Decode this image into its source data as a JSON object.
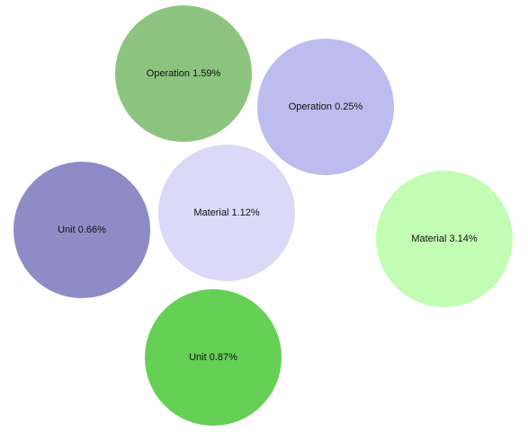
{
  "chart_data": {
    "type": "bubble",
    "title": "",
    "xlabel": "",
    "ylabel": "",
    "grid": false,
    "legend": "none",
    "bubbles": [
      {
        "name": "Operation",
        "value": 1.59,
        "label": "Operation 1.59%",
        "color": "#8cc47f"
      },
      {
        "name": "Operation",
        "value": 0.25,
        "label": "Operation 0.25%",
        "color": "#bdbcee"
      },
      {
        "name": "Unit",
        "value": 0.66,
        "label": "Unit 0.66%",
        "color": "#8f8bc6"
      },
      {
        "name": "Material",
        "value": 1.12,
        "label": "Material 1.12%",
        "color": "#dbd9f7"
      },
      {
        "name": "Material",
        "value": 3.14,
        "label": "Material 3.14%",
        "color": "#c3fdb3"
      },
      {
        "name": "Unit",
        "value": 0.87,
        "label": "Unit 0.87%",
        "color": "#65cf56"
      }
    ]
  }
}
